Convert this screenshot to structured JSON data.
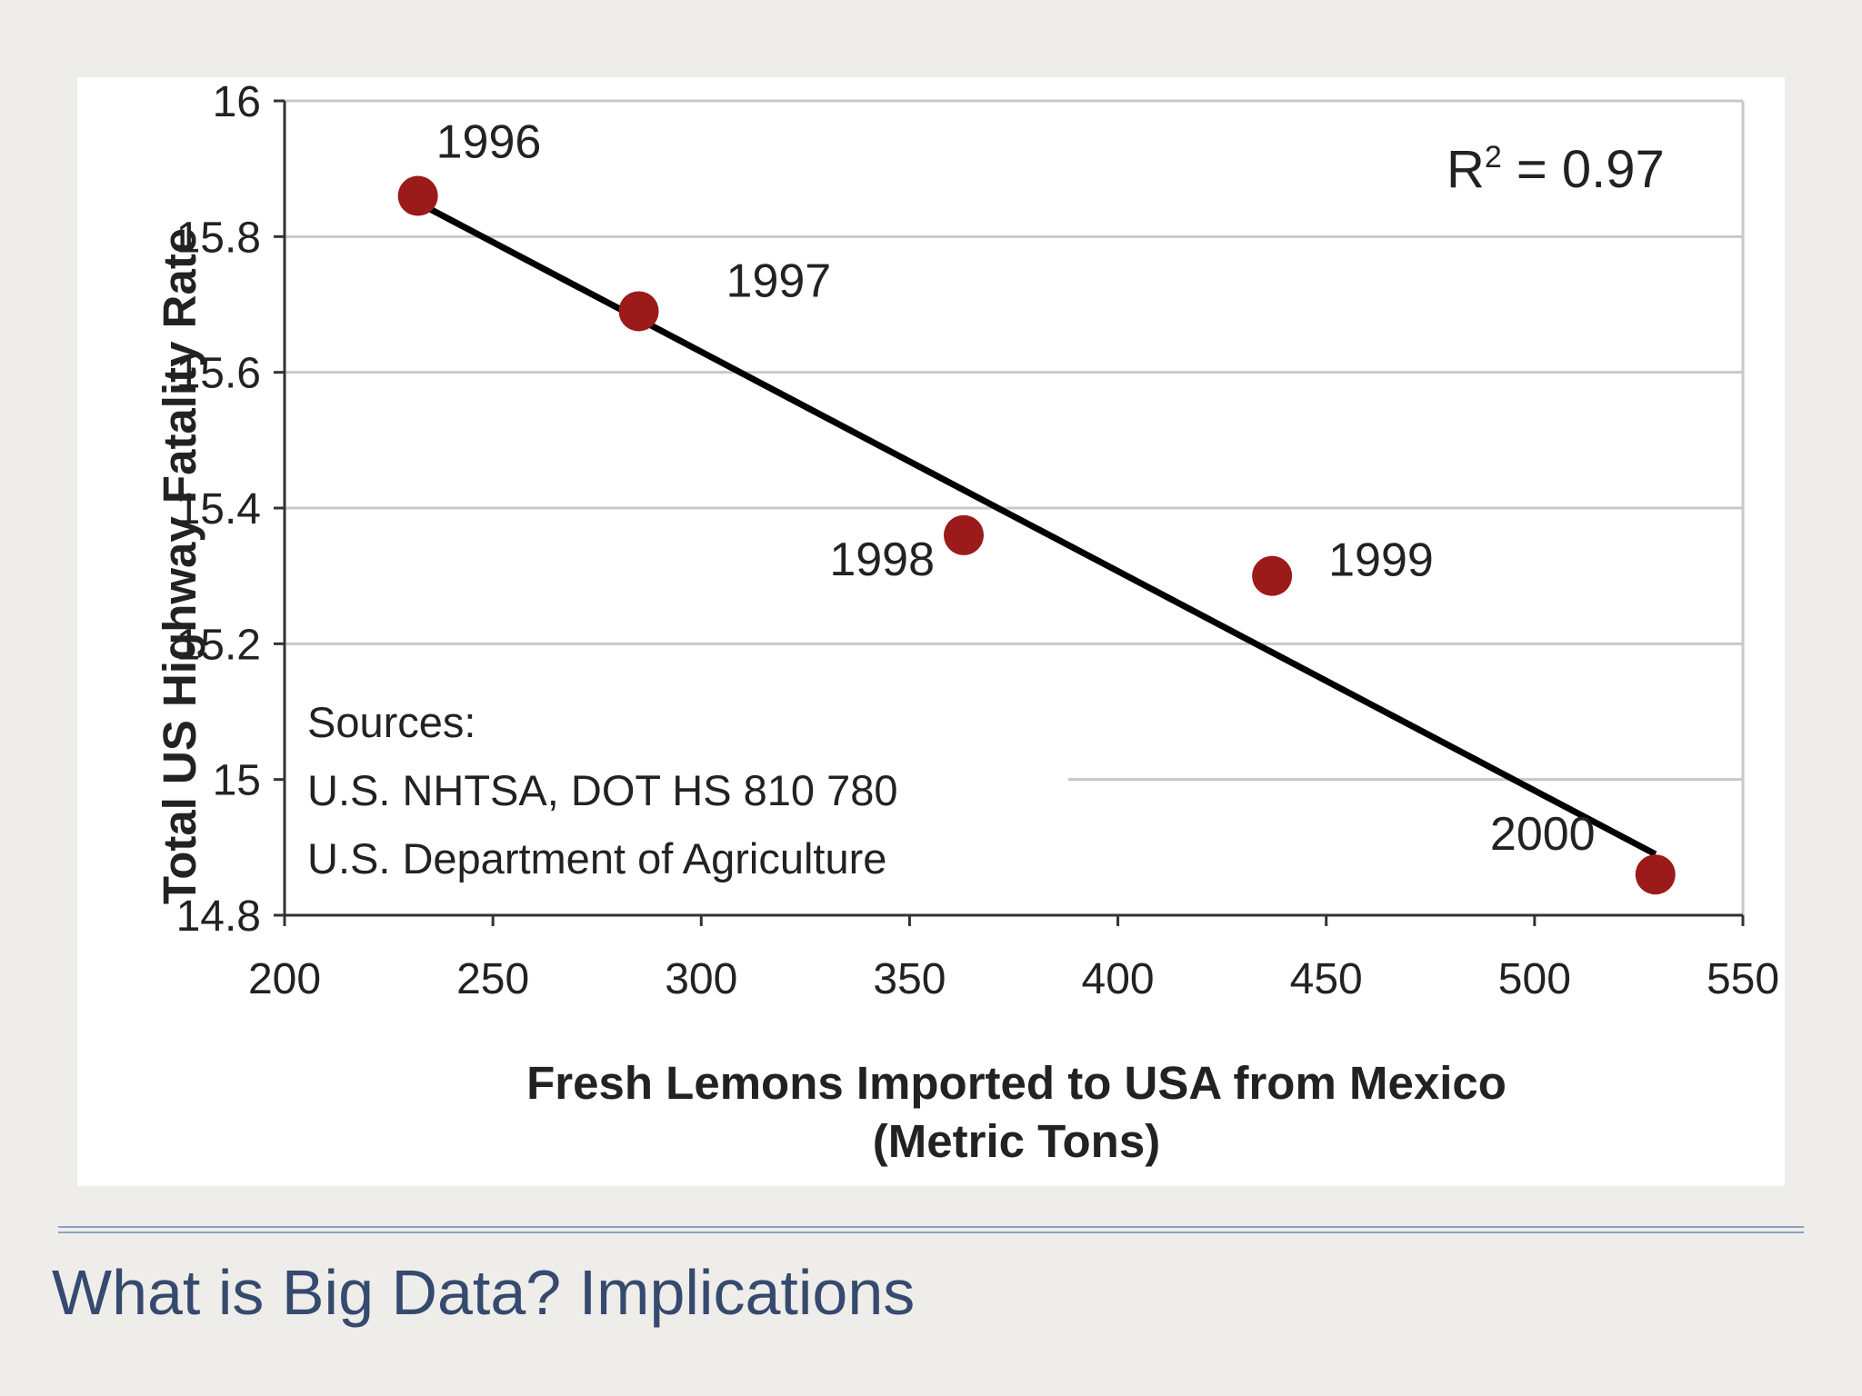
{
  "slide": {
    "title": "What is Big Data? Implications"
  },
  "colors": {
    "point": "#9b1a1a",
    "trend_line": "#000000",
    "grid": "#c8c8c8",
    "title": "#354a6e",
    "divider": "#8da1c4"
  },
  "chart_data": {
    "type": "scatter",
    "title": "",
    "xlabel": "Fresh Lemons Imported to USA from Mexico",
    "xlabel_line2": "(Metric Tons)",
    "ylabel": "Total US Highway Fatality Rate",
    "xlim": [
      200,
      550
    ],
    "ylim": [
      14.8,
      16
    ],
    "x_ticks": [
      200,
      250,
      300,
      350,
      400,
      450,
      500,
      550
    ],
    "x_tick_labels": [
      "200",
      "250",
      "300",
      "350",
      "400",
      "450",
      "500",
      "550"
    ],
    "y_ticks": [
      14.8,
      15,
      15.2,
      15.4,
      15.6,
      15.8,
      16
    ],
    "y_tick_labels": [
      "14.8",
      "15",
      "15.2",
      "15.4",
      "15.6",
      "15.8",
      "16"
    ],
    "grid": "horizontal",
    "points": [
      {
        "label": "1996",
        "x": 232,
        "y": 15.86
      },
      {
        "label": "1997",
        "x": 285,
        "y": 15.69
      },
      {
        "label": "1998",
        "x": 363,
        "y": 15.36
      },
      {
        "label": "1999",
        "x": 437,
        "y": 15.3
      },
      {
        "label": "2000",
        "x": 529,
        "y": 14.86
      }
    ],
    "trend_line": {
      "x1": 232,
      "y1": 15.85,
      "x2": 529,
      "y2": 14.89
    },
    "annotation": "R² = 0.97",
    "sources": [
      "Sources:",
      "U.S. NHTSA, DOT HS 810 780",
      "U.S. Department of Agriculture"
    ]
  }
}
